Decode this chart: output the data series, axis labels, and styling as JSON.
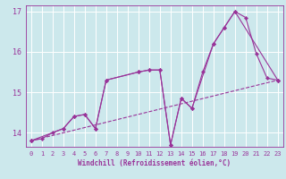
{
  "background_color": "#cce8ec",
  "grid_color": "#ffffff",
  "line_color": "#993399",
  "marker_color": "#993399",
  "xlabel": "Windchill (Refroidissement éolien,°C)",
  "xlim": [
    -0.5,
    23.5
  ],
  "ylim": [
    13.65,
    17.15
  ],
  "yticks": [
    14,
    15,
    16,
    17
  ],
  "xticks": [
    0,
    1,
    2,
    3,
    4,
    5,
    6,
    7,
    8,
    9,
    10,
    11,
    12,
    13,
    14,
    15,
    16,
    17,
    18,
    19,
    20,
    21,
    22,
    23
  ],
  "series1_x": [
    0,
    1,
    2,
    3,
    4,
    5,
    6,
    7,
    10,
    11,
    12,
    13,
    14,
    15,
    16,
    17,
    18,
    19,
    20,
    21,
    22,
    23
  ],
  "series1_y": [
    13.8,
    13.85,
    14.0,
    14.1,
    14.4,
    14.45,
    14.1,
    15.3,
    15.5,
    15.55,
    15.55,
    13.7,
    14.85,
    14.6,
    15.5,
    16.2,
    16.6,
    17.0,
    16.85,
    15.95,
    15.35,
    15.3
  ],
  "series2_x": [
    0,
    3,
    4,
    5,
    6,
    7,
    10,
    11,
    12,
    13,
    14,
    15,
    17,
    18,
    19,
    23
  ],
  "series2_y": [
    13.8,
    14.1,
    14.4,
    14.45,
    14.1,
    15.3,
    15.5,
    15.55,
    15.55,
    13.7,
    14.85,
    14.6,
    16.2,
    16.6,
    17.0,
    15.3
  ],
  "series3_x": [
    0,
    23
  ],
  "series3_y": [
    13.8,
    15.3
  ],
  "lw": 0.8,
  "ms": 2.2
}
